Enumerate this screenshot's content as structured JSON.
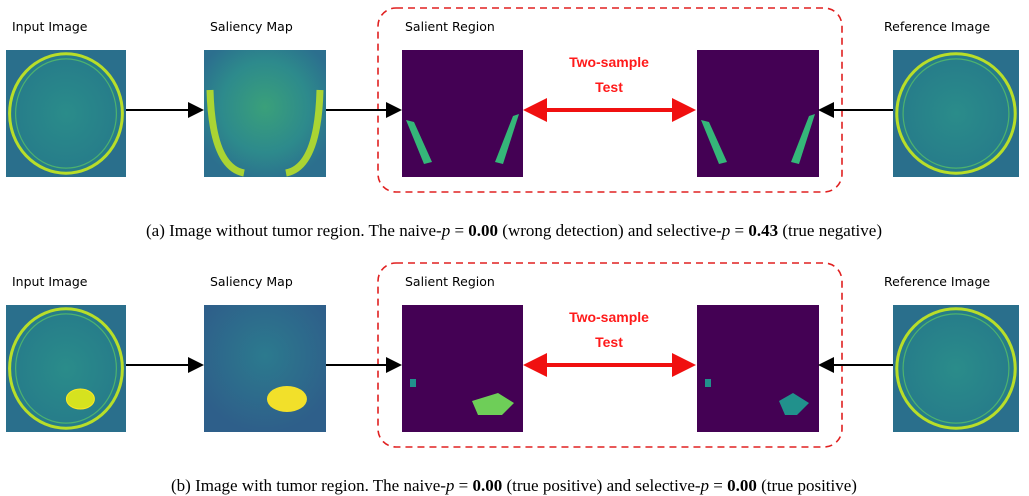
{
  "panels": [
    {
      "labels": {
        "input": "Input Image",
        "saliency": "Saliency Map",
        "salient": "Salient Region",
        "test_line1": "Two-sample",
        "test_line2": "Test",
        "reference": "Reference Image"
      },
      "caption": [
        {
          "text": "(a) Image without tumor region. The naive-",
          "style": "plain"
        },
        {
          "text": "p",
          "style": "italic"
        },
        {
          "text": " = ",
          "style": "plain"
        },
        {
          "text": "0.00",
          "style": "bold"
        },
        {
          "text": " (wrong detection) and selective-",
          "style": "plain"
        },
        {
          "text": "p",
          "style": "italic"
        },
        {
          "text": " = ",
          "style": "plain"
        },
        {
          "text": "0.43",
          "style": "bold"
        },
        {
          "text": " (true negative)",
          "style": "plain"
        }
      ],
      "tumor": false
    },
    {
      "labels": {
        "input": "Input Image",
        "saliency": "Saliency Map",
        "salient": "Salient Region",
        "test_line1": "Two-sample",
        "test_line2": "Test",
        "reference": "Reference Image"
      },
      "caption": [
        {
          "text": "(b) Image with tumor region. The naive-",
          "style": "plain"
        },
        {
          "text": "p",
          "style": "italic"
        },
        {
          "text": " = ",
          "style": "plain"
        },
        {
          "text": "0.00",
          "style": "bold"
        },
        {
          "text": " (true positive) and selective-",
          "style": "plain"
        },
        {
          "text": "p",
          "style": "italic"
        },
        {
          "text": " = ",
          "style": "plain"
        },
        {
          "text": "0.00",
          "style": "bold"
        },
        {
          "text": " (true positive)",
          "style": "plain"
        }
      ],
      "tumor": true
    }
  ]
}
